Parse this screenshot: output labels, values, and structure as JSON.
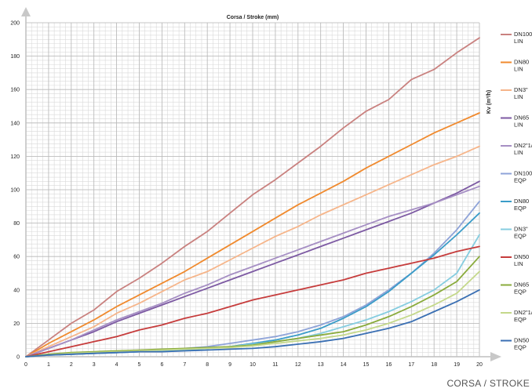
{
  "chart_data": {
    "type": "line",
    "title": "Corsa / Stroke (mm)",
    "ylabel": "Kv (m³/h)",
    "xlabel": "CORSA / STROKE",
    "xlim": [
      0,
      20
    ],
    "ylim": [
      0,
      200
    ],
    "x_ticks": [
      "0",
      "1",
      "2",
      "3",
      "4",
      "5",
      "6",
      "7",
      "8",
      "9",
      "10",
      "11",
      "12",
      "13",
      "14",
      "15",
      "16",
      "17",
      "18",
      "19",
      "20"
    ],
    "y_ticks": [
      "0",
      "20",
      "40",
      "60",
      "80",
      "100",
      "120",
      "140",
      "160",
      "180",
      "200"
    ],
    "grid": true,
    "legend_position": "right",
    "x": [
      0,
      1,
      2,
      3,
      4,
      5,
      6,
      7,
      8,
      9,
      10,
      11,
      12,
      13,
      14,
      15,
      16,
      17,
      18,
      19,
      20
    ],
    "series": [
      {
        "name": "DN100",
        "sub": "LIN",
        "color": "#c9817f",
        "values": [
          0,
          10,
          20,
          28,
          39,
          47,
          56,
          66,
          75,
          86,
          97,
          106,
          116,
          126,
          137,
          147,
          154,
          166,
          172,
          182,
          191
        ]
      },
      {
        "name": "DN80",
        "sub": "LIN",
        "color": "#f08a2e",
        "values": [
          0,
          8,
          15,
          22,
          30,
          37,
          44,
          51,
          59,
          67,
          75,
          83,
          91,
          98,
          105,
          113,
          120,
          127,
          134,
          140,
          146
        ]
      },
      {
        "name": "DN3\"",
        "sub": "LIN",
        "color": "#f6b58a",
        "values": [
          0,
          6,
          12,
          18,
          26,
          32,
          39,
          46,
          51,
          58,
          65,
          72,
          78,
          85,
          91,
          97,
          103,
          109,
          115,
          120,
          126
        ]
      },
      {
        "name": "DN65",
        "sub": "LIN",
        "color": "#7d5aa3",
        "values": [
          0,
          5,
          10,
          15,
          21,
          26,
          31,
          36,
          41,
          46,
          51,
          56,
          61,
          66,
          71,
          76,
          81,
          86,
          92,
          98,
          105
        ]
      },
      {
        "name": "DN2\"1/2",
        "sub": "LIN",
        "color": "#a68fc4",
        "values": [
          0,
          5,
          10,
          16,
          22,
          27,
          32,
          38,
          43,
          49,
          54,
          59,
          64,
          69,
          74,
          79,
          84,
          88,
          92,
          97,
          102
        ]
      },
      {
        "name": "DN100",
        "sub": "EQP",
        "color": "#8ea3d8",
        "values": [
          0,
          1,
          1.5,
          2,
          2.5,
          3,
          4,
          5,
          6,
          8,
          10,
          12,
          15,
          19,
          24,
          31,
          40,
          50,
          62,
          76,
          93
        ]
      },
      {
        "name": "DN80",
        "sub": "EQP",
        "color": "#3a9cc8",
        "values": [
          0,
          1,
          1.5,
          2,
          2.5,
          3,
          3.5,
          4,
          5,
          6,
          8,
          10,
          13,
          17,
          23,
          30,
          39,
          50,
          61,
          73,
          86
        ]
      },
      {
        "name": "DN3\"",
        "sub": "EQP",
        "color": "#86cde0",
        "values": [
          0,
          1,
          1.5,
          2,
          2.5,
          3,
          3.5,
          4,
          5,
          6,
          7.5,
          9,
          11,
          14,
          18,
          22,
          27,
          33,
          40,
          50,
          73
        ]
      },
      {
        "name": "DN50",
        "sub": "LIN",
        "color": "#c63c3c",
        "values": [
          0,
          3,
          6,
          9,
          12,
          16,
          19,
          23,
          26,
          30,
          34,
          37,
          40,
          43,
          46,
          50,
          53,
          56,
          59,
          63,
          66
        ]
      },
      {
        "name": "DN65",
        "sub": "EQP",
        "color": "#8aab3c",
        "values": [
          0,
          1.5,
          2.5,
          3,
          3.5,
          4,
          4.5,
          5,
          5.5,
          6,
          7,
          9,
          11,
          13,
          15,
          19,
          24,
          30,
          37,
          45,
          60
        ]
      },
      {
        "name": "DN2\"1/2",
        "sub": "EQP",
        "color": "#c4d88a",
        "values": [
          0,
          1,
          2,
          2.5,
          3,
          3.5,
          4,
          4.5,
          5,
          5.5,
          6.5,
          8,
          9.5,
          11,
          13,
          16,
          20,
          25,
          31,
          38,
          51
        ]
      },
      {
        "name": "DN50",
        "sub": "EQP",
        "color": "#3a6fb3",
        "values": [
          0,
          1,
          1.5,
          2,
          2.5,
          3,
          3,
          3.5,
          4,
          4.5,
          5,
          6,
          7.5,
          9,
          11,
          14,
          17,
          21,
          27,
          33,
          40
        ]
      }
    ]
  }
}
